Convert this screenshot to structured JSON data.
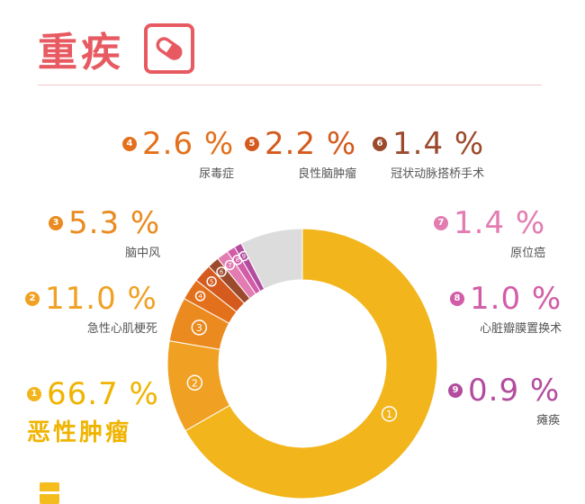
{
  "header": {
    "title": "重疾",
    "icon": "pill-icon",
    "accent_color": "#e85a62"
  },
  "chart_data": {
    "type": "pie",
    "donut": true,
    "title": "",
    "slices": [
      {
        "index": "1",
        "value": 66.7,
        "value_label": "66.7 %",
        "name": "恶性肿瘤",
        "color": "#f2b51b"
      },
      {
        "index": "2",
        "value": 11.0,
        "value_label": "11.0 %",
        "name": "急性心肌梗死",
        "color": "#f0a123"
      },
      {
        "index": "3",
        "value": 5.3,
        "value_label": "5.3 %",
        "name": "脑中风",
        "color": "#ea8a1f"
      },
      {
        "index": "4",
        "value": 2.6,
        "value_label": "2.6 %",
        "name": "尿毒症",
        "color": "#e3711c"
      },
      {
        "index": "5",
        "value": 2.2,
        "value_label": "2.2 %",
        "name": "良性脑肿瘤",
        "color": "#d45a1d"
      },
      {
        "index": "6",
        "value": 1.4,
        "value_label": "1.4 %",
        "name": "冠状动脉搭桥手术",
        "color": "#9b4a2c"
      },
      {
        "index": "7",
        "value": 1.4,
        "value_label": "1.4 %",
        "name": "原位癌",
        "color": "#e37cb1"
      },
      {
        "index": "8",
        "value": 1.0,
        "value_label": "1.0 %",
        "name": "心脏瓣膜置换术",
        "color": "#d25ca7"
      },
      {
        "index": "9",
        "value": 0.9,
        "value_label": "0.9 %",
        "name": "瘫痪",
        "color": "#b34c9e"
      },
      {
        "index": "",
        "value": 7.5,
        "value_label": "",
        "name": "",
        "color": "#dcdcdc"
      }
    ]
  }
}
